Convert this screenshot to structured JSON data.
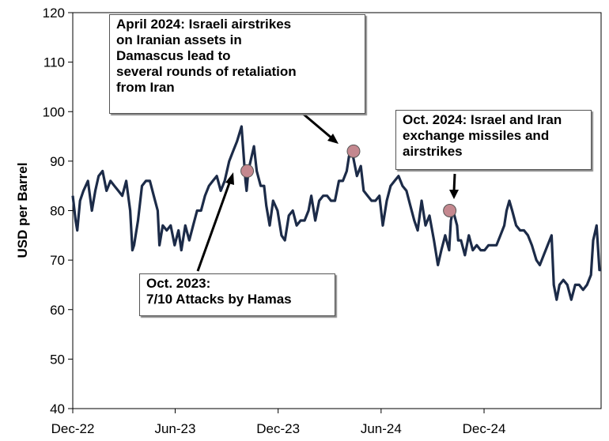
{
  "chart_data": {
    "type": "line",
    "ylabel": "USD per Barrel",
    "ylim": [
      40,
      120
    ],
    "yticks": [
      40,
      50,
      60,
      70,
      80,
      90,
      100,
      110,
      120
    ],
    "xlim": [
      "2022-12-01",
      "2025-06-27"
    ],
    "xticks": [
      {
        "date": "2022-12-01",
        "label": "Dec-22"
      },
      {
        "date": "2023-06-01",
        "label": "Jun-23"
      },
      {
        "date": "2023-12-01",
        "label": "Dec-23"
      },
      {
        "date": "2024-06-01",
        "label": "Jun-24"
      },
      {
        "date": "2024-12-01",
        "label": "Dec-24"
      }
    ],
    "line_color": "#1c2b48",
    "marker_color": "#c4888f",
    "series": [
      {
        "points": [
          [
            "2022-12-01",
            83
          ],
          [
            "2022-12-06",
            78
          ],
          [
            "2022-12-09",
            76
          ],
          [
            "2022-12-14",
            82
          ],
          [
            "2022-12-20",
            84
          ],
          [
            "2022-12-28",
            86
          ],
          [
            "2023-01-04",
            80
          ],
          [
            "2023-01-10",
            84
          ],
          [
            "2023-01-16",
            87
          ],
          [
            "2023-01-23",
            88
          ],
          [
            "2023-01-30",
            84
          ],
          [
            "2023-02-06",
            86
          ],
          [
            "2023-02-13",
            85
          ],
          [
            "2023-02-20",
            84
          ],
          [
            "2023-02-27",
            83
          ],
          [
            "2023-03-06",
            86
          ],
          [
            "2023-03-13",
            80
          ],
          [
            "2023-03-17",
            72
          ],
          [
            "2023-03-20",
            73
          ],
          [
            "2023-03-27",
            78
          ],
          [
            "2023-04-03",
            85
          ],
          [
            "2023-04-10",
            86
          ],
          [
            "2023-04-17",
            86
          ],
          [
            "2023-04-24",
            83
          ],
          [
            "2023-05-01",
            80
          ],
          [
            "2023-05-04",
            73
          ],
          [
            "2023-05-10",
            77
          ],
          [
            "2023-05-17",
            76
          ],
          [
            "2023-05-24",
            77
          ],
          [
            "2023-05-31",
            73
          ],
          [
            "2023-06-07",
            76
          ],
          [
            "2023-06-12",
            72
          ],
          [
            "2023-06-19",
            77
          ],
          [
            "2023-06-26",
            74
          ],
          [
            "2023-07-03",
            77
          ],
          [
            "2023-07-10",
            80
          ],
          [
            "2023-07-17",
            80
          ],
          [
            "2023-07-24",
            83
          ],
          [
            "2023-07-31",
            85
          ],
          [
            "2023-08-07",
            86
          ],
          [
            "2023-08-14",
            87
          ],
          [
            "2023-08-21",
            84
          ],
          [
            "2023-08-28",
            86
          ],
          [
            "2023-09-05",
            90
          ],
          [
            "2023-09-12",
            92
          ],
          [
            "2023-09-19",
            94
          ],
          [
            "2023-09-27",
            97
          ],
          [
            "2023-10-04",
            86
          ],
          [
            "2023-10-06",
            84
          ],
          [
            "2023-10-09",
            88
          ],
          [
            "2023-10-13",
            90
          ],
          [
            "2023-10-19",
            93
          ],
          [
            "2023-10-24",
            88
          ],
          [
            "2023-10-31",
            85
          ],
          [
            "2023-11-06",
            85
          ],
          [
            "2023-11-10",
            81
          ],
          [
            "2023-11-16",
            77
          ],
          [
            "2023-11-22",
            82
          ],
          [
            "2023-11-30",
            80
          ],
          [
            "2023-12-07",
            75
          ],
          [
            "2023-12-13",
            74
          ],
          [
            "2023-12-20",
            79
          ],
          [
            "2023-12-27",
            80
          ],
          [
            "2024-01-03",
            77
          ],
          [
            "2024-01-10",
            78
          ],
          [
            "2024-01-17",
            78
          ],
          [
            "2024-01-24",
            80
          ],
          [
            "2024-01-29",
            83
          ],
          [
            "2024-02-05",
            78
          ],
          [
            "2024-02-12",
            82
          ],
          [
            "2024-02-19",
            83
          ],
          [
            "2024-02-26",
            83
          ],
          [
            "2024-03-04",
            82
          ],
          [
            "2024-03-11",
            82
          ],
          [
            "2024-03-18",
            86
          ],
          [
            "2024-03-25",
            86
          ],
          [
            "2024-04-01",
            88
          ],
          [
            "2024-04-05",
            91
          ],
          [
            "2024-04-12",
            91
          ],
          [
            "2024-04-19",
            87
          ],
          [
            "2024-04-26",
            89
          ],
          [
            "2024-05-01",
            84
          ],
          [
            "2024-05-08",
            83
          ],
          [
            "2024-05-15",
            82
          ],
          [
            "2024-05-22",
            82
          ],
          [
            "2024-05-29",
            83
          ],
          [
            "2024-06-04",
            77
          ],
          [
            "2024-06-11",
            82
          ],
          [
            "2024-06-18",
            85
          ],
          [
            "2024-06-25",
            86
          ],
          [
            "2024-07-02",
            87
          ],
          [
            "2024-07-09",
            85
          ],
          [
            "2024-07-16",
            84
          ],
          [
            "2024-07-23",
            81
          ],
          [
            "2024-07-30",
            78
          ],
          [
            "2024-08-05",
            76
          ],
          [
            "2024-08-12",
            82
          ],
          [
            "2024-08-19",
            77
          ],
          [
            "2024-08-26",
            79
          ],
          [
            "2024-09-03",
            74
          ],
          [
            "2024-09-10",
            69
          ],
          [
            "2024-09-16",
            72
          ],
          [
            "2024-09-23",
            75
          ],
          [
            "2024-09-30",
            72
          ],
          [
            "2024-10-03",
            78
          ],
          [
            "2024-10-07",
            80
          ],
          [
            "2024-10-14",
            77
          ],
          [
            "2024-10-16",
            74
          ],
          [
            "2024-10-21",
            74
          ],
          [
            "2024-10-28",
            71
          ],
          [
            "2024-11-04",
            75
          ],
          [
            "2024-11-11",
            72
          ],
          [
            "2024-11-18",
            73
          ],
          [
            "2024-11-25",
            72
          ],
          [
            "2024-12-02",
            72
          ],
          [
            "2024-12-09",
            73
          ],
          [
            "2024-12-16",
            73
          ],
          [
            "2024-12-23",
            73
          ],
          [
            "2024-12-30",
            75
          ],
          [
            "2025-01-06",
            77
          ],
          [
            "2025-01-10",
            80
          ],
          [
            "2025-01-15",
            82
          ],
          [
            "2025-01-20",
            80
          ],
          [
            "2025-01-27",
            77
          ],
          [
            "2025-02-03",
            76
          ],
          [
            "2025-02-10",
            76
          ],
          [
            "2025-02-17",
            75
          ],
          [
            "2025-02-24",
            73
          ],
          [
            "2025-03-04",
            70
          ],
          [
            "2025-03-10",
            69
          ],
          [
            "2025-03-17",
            71
          ],
          [
            "2025-03-24",
            73
          ],
          [
            "2025-03-31",
            75
          ],
          [
            "2025-04-04",
            65
          ],
          [
            "2025-04-09",
            62
          ],
          [
            "2025-04-14",
            65
          ],
          [
            "2025-04-21",
            66
          ],
          [
            "2025-04-28",
            65
          ],
          [
            "2025-05-05",
            62
          ],
          [
            "2025-05-12",
            65
          ],
          [
            "2025-05-19",
            65
          ],
          [
            "2025-05-26",
            64
          ],
          [
            "2025-06-02",
            65
          ],
          [
            "2025-06-09",
            67
          ],
          [
            "2025-06-13",
            74
          ],
          [
            "2025-06-19",
            77
          ],
          [
            "2025-06-24",
            68
          ],
          [
            "2025-06-27",
            68
          ]
        ]
      }
    ],
    "events": [
      {
        "date": "2023-10-07",
        "value": 88
      },
      {
        "date": "2024-04-13",
        "value": 92
      },
      {
        "date": "2024-10-01",
        "value": 80
      }
    ],
    "annotations": [
      {
        "text": "April 2024: Israeli airstrikes\non Iranian assets in\nDamascus lead to\nseveral rounds of retaliation\nfrom Iran"
      },
      {
        "text": "Oct. 2024: Israel and Iran\nexchange missiles and\nairstrikes"
      },
      {
        "text": "Oct. 2023:\n7/10 Attacks by Hamas"
      }
    ]
  }
}
